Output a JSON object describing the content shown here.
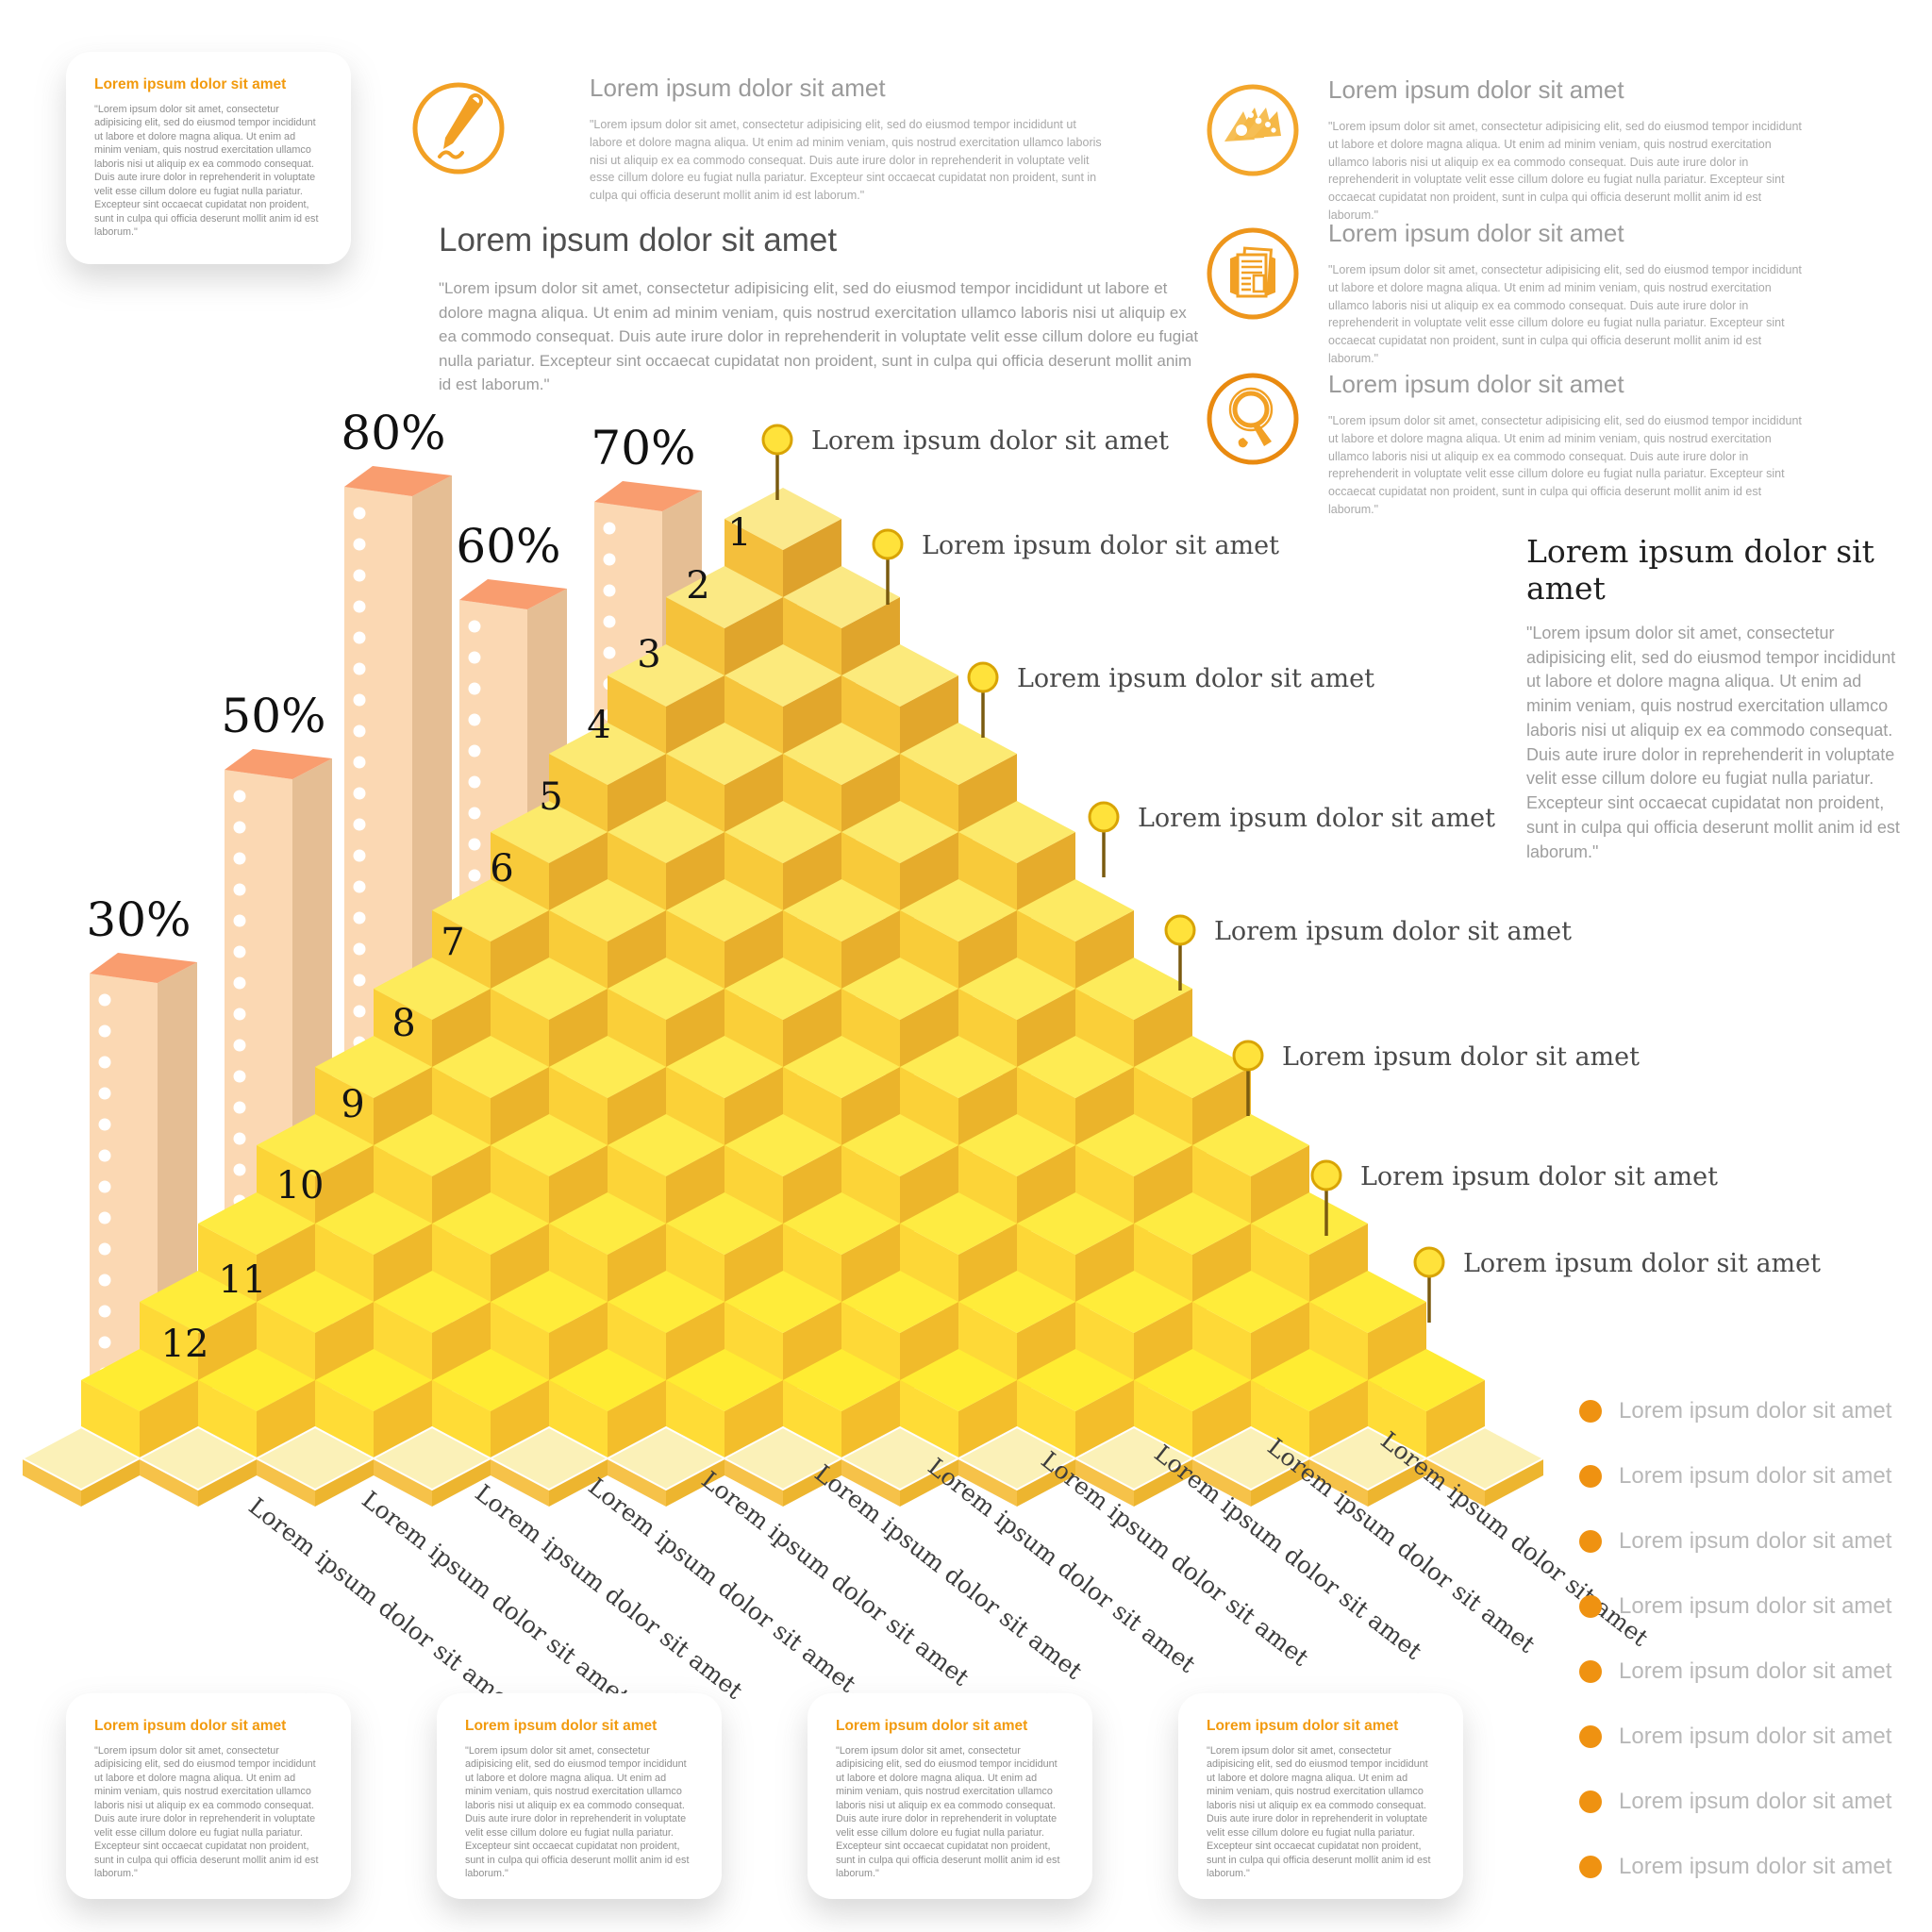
{
  "colors": {
    "accent_orange": "#F29A0D",
    "icon_stroke": "#F2A024",
    "bar_front": "#FBD8B3",
    "bar_side": "#E5BE94",
    "bar_top": "#F99D6F",
    "cube_top_start": "#FBE98C",
    "cube_top_end": "#FFEC32",
    "cube_left_start": "#F4BF3C",
    "cube_left_end": "#FFDC36",
    "cube_right_start": "#DEA22C",
    "cube_right_end": "#F3BE2B",
    "base_tile_top": "#FBF1B8",
    "pin_head": "#FFE23B",
    "legend_dot": "#EF9211"
  },
  "top_left_card": {
    "title": "Lorem ipsum dolor sit amet",
    "body": "\"Lorem ipsum dolor sit amet, consectetur adipisicing elit, sed do eiusmod tempor incididunt ut labore et dolore magna aliqua. Ut enim ad minim veniam, quis nostrud exercitation ullamco laboris nisi ut aliquip ex ea commodo consequat. Duis aute irure dolor in reprehenderit in voluptate velit esse cillum dolore eu fugiat nulla pariatur. Excepteur sint occaecat cupidatat non proident, sunt in culpa qui officia deserunt mollit anim id est laborum.\""
  },
  "pen_feature": {
    "icon": "pen-icon",
    "title": "Lorem ipsum dolor sit amet",
    "body": "\"Lorem ipsum dolor sit amet, consectetur adipisicing elit, sed do eiusmod tempor incididunt ut labore et dolore magna aliqua. Ut enim ad minim veniam, quis nostrud exercitation ullamco laboris nisi ut aliquip ex ea commodo consequat. Duis aute irure dolor in reprehenderit in voluptate velit esse cillum dolore eu fugiat nulla pariatur. Excepteur sint occaecat cupidatat non proident, sunt in culpa qui officia deserunt mollit anim id est laborum.\""
  },
  "main_section": {
    "title": "Lorem ipsum dolor sit amet",
    "body": "\"Lorem ipsum dolor sit amet, consectetur adipisicing elit, sed do eiusmod tempor incididunt ut labore et dolore magna aliqua. Ut enim ad minim veniam, quis nostrud exercitation ullamco laboris nisi ut aliquip ex ea commodo consequat. Duis aute irure dolor in reprehenderit in voluptate velit esse cillum dolore eu fugiat nulla pariatur. Excepteur sint occaecat cupidatat non proident, sunt in culpa qui officia deserunt mollit anim id est laborum.\""
  },
  "right_features": [
    {
      "icon": "fan-cards-icon",
      "title": "Lorem ipsum dolor sit amet",
      "body": "\"Lorem ipsum dolor sit amet, consectetur adipisicing elit, sed do eiusmod tempor incididunt ut labore et dolore magna aliqua. Ut enim ad minim veniam, quis nostrud exercitation ullamco laboris nisi ut aliquip ex ea commodo consequat. Duis aute irure dolor in reprehenderit in voluptate velit esse cillum dolore eu fugiat nulla pariatur. Excepteur sint occaecat cupidatat non proident, sunt in culpa qui officia deserunt mollit anim id est laborum.\""
    },
    {
      "icon": "documents-icon",
      "title": "Lorem ipsum dolor sit amet",
      "body": "\"Lorem ipsum dolor sit amet, consectetur adipisicing elit, sed do eiusmod tempor incididunt ut labore et dolore magna aliqua. Ut enim ad minim veniam, quis nostrud exercitation ullamco laboris nisi ut aliquip ex ea commodo consequat. Duis aute irure dolor in reprehenderit in voluptate velit esse cillum dolore eu fugiat nulla pariatur. Excepteur sint occaecat cupidatat non proident, sunt in culpa qui officia deserunt mollit anim id est laborum.\""
    },
    {
      "icon": "magnifier-icon",
      "title": "Lorem ipsum dolor sit amet",
      "body": "\"Lorem ipsum dolor sit amet, consectetur adipisicing elit, sed do eiusmod tempor incididunt ut labore et dolore magna aliqua. Ut enim ad minim veniam, quis nostrud exercitation ullamco laboris nisi ut aliquip ex ea commodo consequat. Duis aute irure dolor in reprehenderit in voluptate velit esse cillum dolore eu fugiat nulla pariatur. Excepteur sint occaecat cupidatat non proident, sunt in culpa qui officia deserunt mollit anim id est laborum.\""
    }
  ],
  "right_quote": {
    "title": "Lorem ipsum dolor sit amet",
    "body": "\"Lorem ipsum dolor sit amet, consectetur adipisicing elit, sed do eiusmod tempor incididunt ut labore et dolore magna aliqua. Ut enim ad minim veniam, quis nostrud exercitation ullamco laboris nisi ut aliquip ex ea commodo consequat. Duis aute irure dolor in reprehenderit in voluptate velit esse cillum dolore eu fugiat nulla pariatur. Excepteur sint occaecat cupidatat non proident, sunt in culpa qui officia deserunt mollit anim id est laborum.\""
  },
  "chart_data": {
    "type": "3d-step-pyramid",
    "rows": 12,
    "step_numbers": [
      1,
      2,
      3,
      4,
      5,
      6,
      7,
      8,
      9,
      10,
      11,
      12
    ],
    "bars": {
      "labels": [
        "30%",
        "50%",
        "80%",
        "60%",
        "70%"
      ],
      "values": [
        30,
        50,
        80,
        60,
        70
      ]
    },
    "pin_annotations": [
      "Lorem ipsum dolor sit amet",
      "Lorem ipsum dolor sit amet",
      "Lorem ipsum dolor sit amet",
      "Lorem ipsum dolor sit amet",
      "Lorem ipsum dolor sit amet",
      "Lorem ipsum dolor sit amet",
      "Lorem ipsum dolor sit amet",
      "Lorem ipsum dolor sit amet"
    ],
    "x_labels": [
      "Lorem ipsum dolor sit amet",
      "Lorem ipsum dolor sit amet",
      "Lorem ipsum dolor sit amet",
      "Lorem ipsum dolor sit amet",
      "Lorem ipsum dolor sit amet",
      "Lorem ipsum dolor sit amet",
      "Lorem ipsum dolor sit amet",
      "Lorem ipsum dolor sit amet",
      "Lorem ipsum dolor sit amet",
      "Lorem ipsum dolor sit amet",
      "Lorem ipsum dolor sit amet"
    ]
  },
  "bottom_cards": [
    {
      "title": "Lorem ipsum dolor sit amet",
      "body": "\"Lorem ipsum dolor sit amet, consectetur adipisicing elit, sed do eiusmod tempor incididunt ut labore et dolore magna aliqua. Ut enim ad minim veniam, quis nostrud exercitation ullamco laboris nisi ut aliquip ex ea commodo consequat. Duis aute irure dolor in reprehenderit in voluptate velit esse cillum dolore eu fugiat nulla pariatur. Excepteur sint occaecat cupidatat non proident, sunt in culpa qui officia deserunt mollit anim id est laborum.\""
    },
    {
      "title": "Lorem ipsum dolor sit amet",
      "body": "\"Lorem ipsum dolor sit amet, consectetur adipisicing elit, sed do eiusmod tempor incididunt ut labore et dolore magna aliqua. Ut enim ad minim veniam, quis nostrud exercitation ullamco laboris nisi ut aliquip ex ea commodo consequat. Duis aute irure dolor in reprehenderit in voluptate velit esse cillum dolore eu fugiat nulla pariatur. Excepteur sint occaecat cupidatat non proident, sunt in culpa qui officia deserunt mollit anim id est laborum.\""
    },
    {
      "title": "Lorem ipsum dolor sit amet",
      "body": "\"Lorem ipsum dolor sit amet, consectetur adipisicing elit, sed do eiusmod tempor incididunt ut labore et dolore magna aliqua. Ut enim ad minim veniam, quis nostrud exercitation ullamco laboris nisi ut aliquip ex ea commodo consequat. Duis aute irure dolor in reprehenderit in voluptate velit esse cillum dolore eu fugiat nulla pariatur. Excepteur sint occaecat cupidatat non proident, sunt in culpa qui officia deserunt mollit anim id est laborum.\""
    },
    {
      "title": "Lorem ipsum dolor sit amet",
      "body": "\"Lorem ipsum dolor sit amet, consectetur adipisicing elit, sed do eiusmod tempor incididunt ut labore et dolore magna aliqua. Ut enim ad minim veniam, quis nostrud exercitation ullamco laboris nisi ut aliquip ex ea commodo consequat. Duis aute irure dolor in reprehenderit in voluptate velit esse cillum dolore eu fugiat nulla pariatur. Excepteur sint occaecat cupidatat non proident, sunt in culpa qui officia deserunt mollit anim id est laborum.\""
    }
  ],
  "legend": {
    "items": [
      "Lorem ipsum dolor sit amet",
      "Lorem ipsum dolor sit amet",
      "Lorem ipsum dolor sit amet",
      "Lorem ipsum dolor sit amet",
      "Lorem ipsum dolor sit amet",
      "Lorem ipsum dolor sit amet",
      "Lorem ipsum dolor sit amet",
      "Lorem ipsum dolor sit amet"
    ]
  }
}
